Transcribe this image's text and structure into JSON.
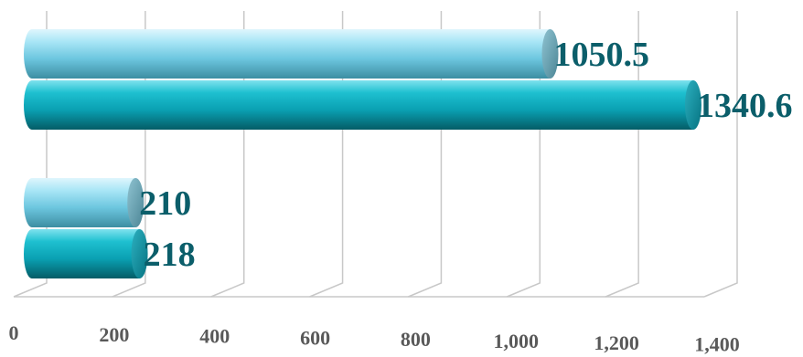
{
  "chart_data": {
    "type": "bar",
    "orientation": "horizontal",
    "style": "3d-cylinder",
    "categories": [
      "",
      ""
    ],
    "series": [
      {
        "values": [
          1050.5,
          210
        ],
        "color": "#7fd0e6"
      },
      {
        "values": [
          1340.6,
          218
        ],
        "color": "#0aa8b8"
      }
    ],
    "data_labels": [
      [
        "1050.5",
        "210"
      ],
      [
        "1340.6",
        "218"
      ]
    ],
    "x_ticks": [
      "0",
      "200",
      "400",
      "600",
      "800",
      "1,000",
      "1,200",
      "1,400"
    ],
    "xlim": [
      0,
      1400
    ],
    "title": "",
    "xlabel": "",
    "ylabel": "",
    "grid": true,
    "legend": "none",
    "label_color": "#0b5e6a",
    "tick_color": "#595959"
  }
}
